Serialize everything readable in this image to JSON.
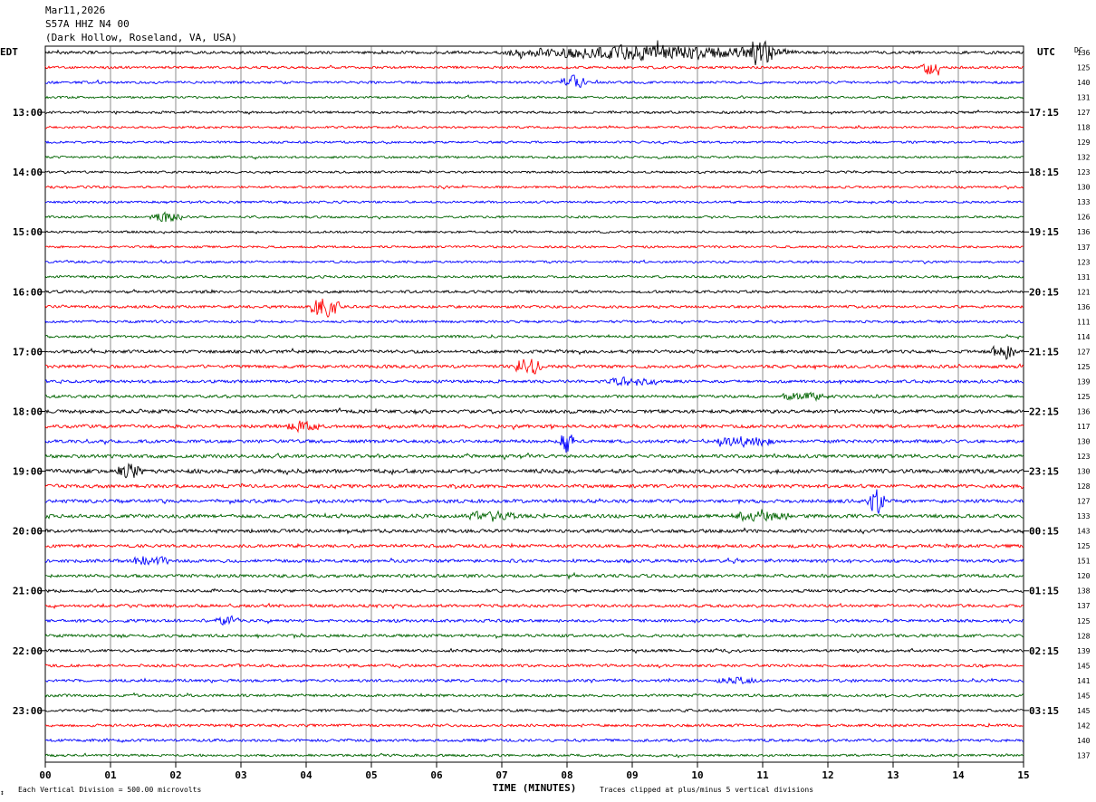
{
  "header": {
    "date": "Mar11,2026",
    "station": "S57A HHZ N4 00",
    "location": "(Dark Hollow, Roseland, VA, USA)"
  },
  "axis": {
    "left_tz": "EDT",
    "right_tz": "UTC",
    "dc_header": "DC",
    "xlabel": "TIME (MINUTES)",
    "footer_left": "Each Vertical Division =  500.00 microvolts",
    "footer_right": "Traces clipped at plus/minus 5 vertical divisions",
    "corner_mark": "↕"
  },
  "colors": {
    "cycle": [
      "#000000",
      "#ff0000",
      "#0000ff",
      "#006400"
    ],
    "grid": "#000000"
  },
  "chart_data": {
    "type": "line",
    "title": "",
    "x_ticks": [
      "00",
      "01",
      "02",
      "03",
      "04",
      "05",
      "06",
      "07",
      "08",
      "09",
      "10",
      "11",
      "12",
      "13",
      "14",
      "15"
    ],
    "xlim": [
      0,
      15
    ],
    "rows_per_hour": 4,
    "row_count": 48,
    "left_hour_labels": [
      {
        "row": 4,
        "label": "13:00"
      },
      {
        "row": 8,
        "label": "14:00"
      },
      {
        "row": 12,
        "label": "15:00"
      },
      {
        "row": 16,
        "label": "16:00"
      },
      {
        "row": 20,
        "label": "17:00"
      },
      {
        "row": 24,
        "label": "18:00"
      },
      {
        "row": 28,
        "label": "19:00"
      },
      {
        "row": 32,
        "label": "20:00"
      },
      {
        "row": 36,
        "label": "21:00"
      },
      {
        "row": 40,
        "label": "22:00"
      },
      {
        "row": 44,
        "label": "23:00"
      }
    ],
    "right_hour_labels": [
      {
        "row": 4,
        "label": "17:15"
      },
      {
        "row": 8,
        "label": "18:15"
      },
      {
        "row": 12,
        "label": "19:15"
      },
      {
        "row": 16,
        "label": "20:15"
      },
      {
        "row": 20,
        "label": "21:15"
      },
      {
        "row": 24,
        "label": "22:15"
      },
      {
        "row": 28,
        "label": "23:15"
      },
      {
        "row": 32,
        "label": "00:15"
      },
      {
        "row": 36,
        "label": "01:15"
      },
      {
        "row": 40,
        "label": "02:15"
      },
      {
        "row": 44,
        "label": "03:15"
      }
    ],
    "dc_offsets": [
      136,
      125,
      140,
      131,
      127,
      118,
      129,
      132,
      123,
      130,
      133,
      126,
      136,
      137,
      123,
      131,
      121,
      136,
      111,
      114,
      127,
      125,
      139,
      125,
      136,
      117,
      130,
      123,
      130,
      128,
      127,
      133,
      143,
      125,
      151,
      120,
      138,
      137,
      125,
      128,
      139,
      145,
      141,
      145,
      145,
      142,
      140,
      137
    ],
    "row_noise": [
      1.2,
      1.0,
      1.0,
      0.9,
      1.0,
      0.9,
      0.9,
      0.9,
      0.9,
      0.9,
      0.9,
      0.9,
      0.9,
      0.9,
      0.9,
      1.0,
      1.1,
      1.1,
      1.0,
      1.0,
      1.3,
      1.3,
      1.2,
      1.2,
      1.4,
      1.4,
      1.3,
      1.4,
      1.6,
      1.4,
      1.4,
      1.5,
      1.4,
      1.3,
      1.3,
      1.3,
      1.2,
      1.2,
      1.2,
      1.2,
      1.1,
      1.1,
      1.1,
      1.1,
      1.1,
      1.1,
      1.1,
      1.0
    ],
    "events": [
      {
        "row": 0,
        "start_min": 7.0,
        "end_min": 11.5,
        "amp": 2.6
      },
      {
        "row": 0,
        "start_min": 10.8,
        "end_min": 11.2,
        "amp": 5.0
      },
      {
        "row": 1,
        "start_min": 13.4,
        "end_min": 13.7,
        "amp": 3.2
      },
      {
        "row": 2,
        "start_min": 7.9,
        "end_min": 8.3,
        "amp": 2.8
      },
      {
        "row": 11,
        "start_min": 1.6,
        "end_min": 2.1,
        "amp": 2.0
      },
      {
        "row": 17,
        "start_min": 4.05,
        "end_min": 4.5,
        "amp": 5.0
      },
      {
        "row": 20,
        "start_min": 14.5,
        "end_min": 14.9,
        "amp": 3.0
      },
      {
        "row": 21,
        "start_min": 7.2,
        "end_min": 7.6,
        "amp": 4.0
      },
      {
        "row": 22,
        "start_min": 8.6,
        "end_min": 9.4,
        "amp": 1.6
      },
      {
        "row": 23,
        "start_min": 11.3,
        "end_min": 12.0,
        "amp": 1.6
      },
      {
        "row": 25,
        "start_min": 3.7,
        "end_min": 4.2,
        "amp": 1.8
      },
      {
        "row": 26,
        "start_min": 7.9,
        "end_min": 8.1,
        "amp": 5.0
      },
      {
        "row": 26,
        "start_min": 10.3,
        "end_min": 11.2,
        "amp": 1.8
      },
      {
        "row": 28,
        "start_min": 1.1,
        "end_min": 1.5,
        "amp": 2.5
      },
      {
        "row": 30,
        "start_min": 12.6,
        "end_min": 12.9,
        "amp": 5.0
      },
      {
        "row": 31,
        "start_min": 6.5,
        "end_min": 7.2,
        "amp": 1.8
      },
      {
        "row": 31,
        "start_min": 10.5,
        "end_min": 11.4,
        "amp": 1.8
      },
      {
        "row": 34,
        "start_min": 1.3,
        "end_min": 1.9,
        "amp": 1.8
      },
      {
        "row": 38,
        "start_min": 2.6,
        "end_min": 3.0,
        "amp": 1.6
      },
      {
        "row": 42,
        "start_min": 10.3,
        "end_min": 10.9,
        "amp": 1.6
      }
    ]
  }
}
